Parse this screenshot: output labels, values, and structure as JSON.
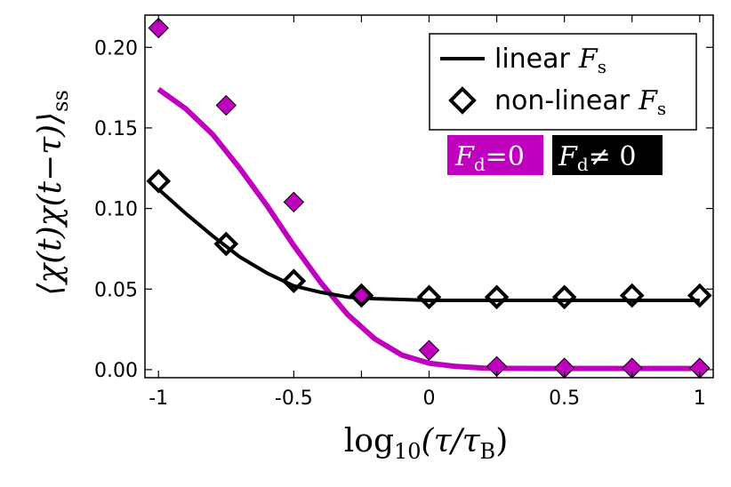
{
  "chart_data": {
    "type": "scatter",
    "xlabel": {
      "base": "log",
      "sub": "10",
      "expr": "(τ/τ",
      "expr_sub": "B",
      "close": ")"
    },
    "ylabel": {
      "open": "⟨χ(t)χ(t−τ)⟩",
      "sub": "ss"
    },
    "xlim": [
      -1.05,
      1.05
    ],
    "ylim": [
      -0.005,
      0.22
    ],
    "x_ticks": [
      -1,
      -0.5,
      -0.25,
      0,
      0.25,
      0.5,
      0.75,
      1
    ],
    "x_tick_labels": [
      "-1",
      "-0.5",
      "0",
      "0.5",
      "1"
    ],
    "x_tick_label_values": [
      -1,
      -0.5,
      0,
      0.5,
      1
    ],
    "x_minor_ticks": [
      -0.75,
      -0.25,
      0.25,
      0.75
    ],
    "y_ticks": [
      0.0,
      0.05,
      0.1,
      0.15,
      0.2
    ],
    "y_tick_labels": [
      "0.00",
      "0.05",
      "0.10",
      "0.15",
      "0.20"
    ],
    "grid": false,
    "legend": {
      "placement": "top-right",
      "entries": [
        {
          "label": "linear",
          "var": "F",
          "sub": "s",
          "marker": "line"
        },
        {
          "label": "non-linear",
          "var": "F",
          "sub": "s",
          "marker": "open-diamond"
        }
      ]
    },
    "badges": [
      {
        "var": "F",
        "sub": "d",
        "rel": "=0",
        "color": "#bf00bf"
      },
      {
        "var": "F",
        "sub": "d",
        "rel": "≠ 0",
        "color": "#000000"
      }
    ],
    "series": [
      {
        "name": "F_d=0 non-linear",
        "kind": "scatter",
        "marker": "filled-diamond",
        "color": "#bf00bf",
        "x": [
          -1,
          -0.75,
          -0.5,
          -0.25,
          0,
          0.25,
          0.5,
          0.75,
          1
        ],
        "y": [
          0.212,
          0.164,
          0.104,
          0.047,
          0.012,
          0.002,
          0.001,
          0.001,
          0.001
        ]
      },
      {
        "name": "F_d≠0 non-linear",
        "kind": "scatter",
        "marker": "open-diamond",
        "color": "#000000",
        "x": [
          -1,
          -0.75,
          -0.5,
          -0.25,
          0,
          0.25,
          0.5,
          0.75,
          1
        ],
        "y": [
          0.117,
          0.078,
          0.055,
          0.046,
          0.045,
          0.045,
          0.045,
          0.046,
          0.046
        ]
      },
      {
        "name": "F_d=0 linear",
        "kind": "line",
        "color": "#bf00bf",
        "x": [
          -1,
          -0.9,
          -0.8,
          -0.7,
          -0.6,
          -0.5,
          -0.4,
          -0.3,
          -0.2,
          -0.1,
          0,
          0.1,
          0.2,
          0.3,
          0.4,
          0.5,
          0.6,
          0.7,
          0.8,
          0.9,
          1
        ],
        "y": [
          0.174,
          0.162,
          0.146,
          0.125,
          0.102,
          0.077,
          0.054,
          0.034,
          0.019,
          0.009,
          0.004,
          0.002,
          0.001,
          0.0008,
          0.0007,
          0.0007,
          0.0007,
          0.0007,
          0.0007,
          0.0007,
          0.0007
        ]
      },
      {
        "name": "F_d≠0 linear",
        "kind": "line",
        "color": "#000000",
        "x": [
          -1,
          -0.9,
          -0.8,
          -0.7,
          -0.6,
          -0.5,
          -0.4,
          -0.3,
          -0.2,
          -0.1,
          0,
          0.2,
          0.4,
          0.6,
          0.8,
          1
        ],
        "y": [
          0.112,
          0.097,
          0.083,
          0.07,
          0.06,
          0.052,
          0.048,
          0.045,
          0.044,
          0.0435,
          0.043,
          0.043,
          0.043,
          0.043,
          0.043,
          0.043
        ]
      }
    ]
  }
}
